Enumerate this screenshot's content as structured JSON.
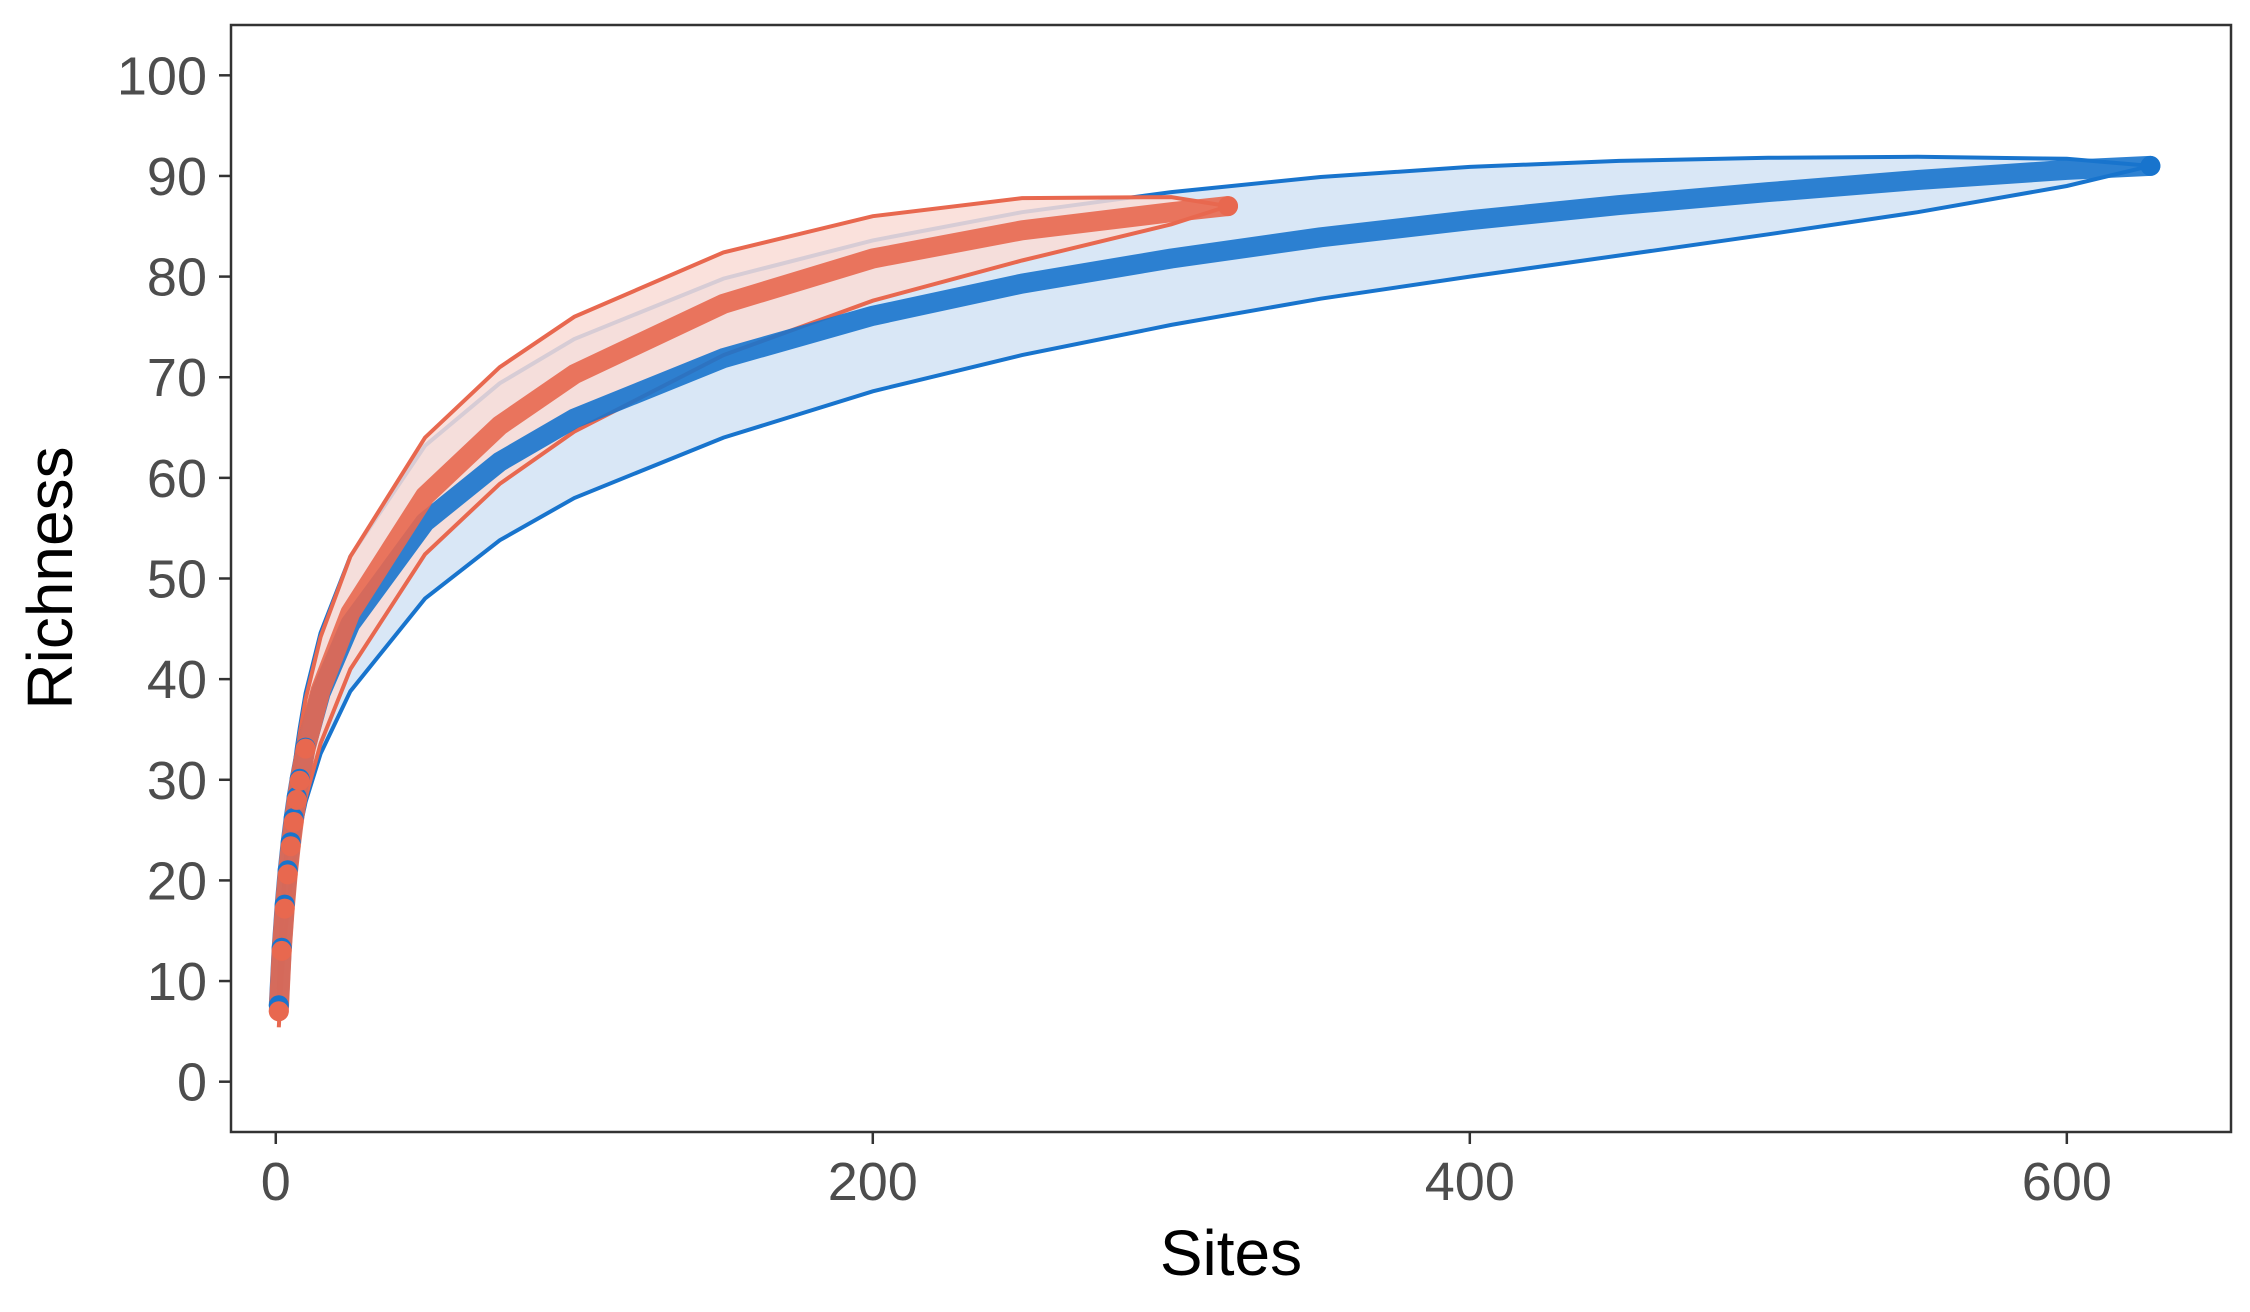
{
  "chart_data": {
    "type": "line",
    "title": "",
    "xlabel": "Sites",
    "ylabel": "Richness",
    "xlim": [
      -15,
      655
    ],
    "ylim": [
      -5,
      105
    ],
    "xticks": [
      0,
      200,
      400,
      600
    ],
    "xtick_labels": [
      "0",
      "200",
      "400",
      "600"
    ],
    "yticks": [
      0,
      10,
      20,
      30,
      40,
      50,
      60,
      70,
      80,
      90,
      100
    ],
    "ytick_labels": [
      "0",
      "10",
      "20",
      "30",
      "40",
      "50",
      "60",
      "70",
      "80",
      "90",
      "100"
    ],
    "grid": false,
    "legend": "none",
    "series": [
      {
        "color": "#1874cd",
        "fill": "#d2e3f5",
        "x": [
          1,
          2,
          3,
          4,
          5,
          6,
          7,
          8,
          10,
          15,
          25,
          50,
          75,
          100,
          150,
          200,
          250,
          300,
          350,
          400,
          450,
          500,
          550,
          600,
          628
        ],
        "y": [
          7.6,
          13.3,
          17.6,
          21.0,
          23.8,
          26.2,
          28.3,
          30.1,
          33.2,
          38.6,
          45.5,
          55.6,
          61.6,
          65.9,
          71.9,
          76.1,
          79.3,
          81.8,
          83.9,
          85.6,
          87.1,
          88.4,
          89.6,
          90.6,
          91.0
        ],
        "lower": [
          6.0,
          10.8,
          14.5,
          17.4,
          19.8,
          21.8,
          23.5,
          25.1,
          27.8,
          32.6,
          38.8,
          48.0,
          53.8,
          58.0,
          64.0,
          68.6,
          72.2,
          75.2,
          77.8,
          80.0,
          82.1,
          84.2,
          86.4,
          89.0,
          91.0
        ],
        "upper": [
          9.2,
          15.8,
          20.7,
          24.6,
          27.8,
          30.6,
          33.1,
          35.1,
          38.6,
          44.6,
          52.2,
          63.2,
          69.4,
          73.8,
          79.8,
          83.6,
          86.4,
          88.4,
          89.9,
          90.9,
          91.5,
          91.8,
          91.9,
          91.7,
          91.0
        ]
      },
      {
        "color": "#e8684f",
        "fill": "#f9dcd6",
        "x": [
          1,
          2,
          3,
          4,
          5,
          6,
          7,
          8,
          10,
          15,
          25,
          50,
          75,
          100,
          150,
          200,
          250,
          300,
          319
        ],
        "y": [
          7.0,
          13.0,
          17.2,
          20.6,
          23.4,
          25.8,
          28.0,
          29.9,
          33.1,
          38.9,
          46.6,
          58.2,
          65.2,
          70.3,
          77.3,
          81.8,
          84.6,
          86.4,
          87.0
        ],
        "lower": [
          5.4,
          10.6,
          14.2,
          17.2,
          19.6,
          21.8,
          23.6,
          25.3,
          28.2,
          33.6,
          41.0,
          52.4,
          59.4,
          64.6,
          72.2,
          77.6,
          81.6,
          85.2,
          87.0
        ],
        "upper": [
          8.6,
          15.4,
          20.2,
          24.0,
          27.2,
          29.8,
          32.4,
          34.5,
          38.0,
          44.2,
          52.2,
          64.0,
          71.0,
          76.0,
          82.4,
          86.0,
          87.8,
          87.9,
          87.0
        ]
      }
    ]
  }
}
